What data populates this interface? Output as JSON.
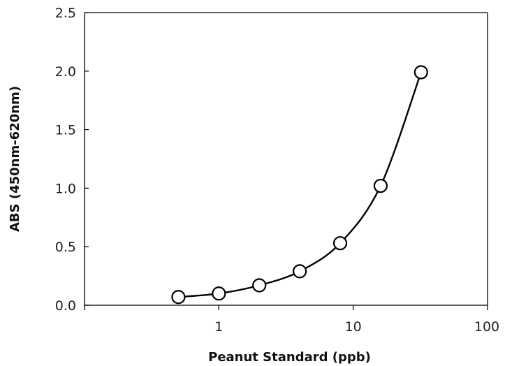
{
  "chart_data": {
    "type": "scatter",
    "title": "",
    "xlabel": "Peanut Standard (ppb)",
    "ylabel": "ABS (450nm-620nm)",
    "x_scale": "log",
    "xlim": [
      0.1,
      100
    ],
    "ylim": [
      0,
      2.5
    ],
    "grid": false,
    "x_ticks": [
      {
        "value": 1,
        "label": "1"
      },
      {
        "value": 10,
        "label": "10"
      },
      {
        "value": 100,
        "label": "100"
      }
    ],
    "y_ticks": [
      {
        "value": 0.0,
        "label": "0.0"
      },
      {
        "value": 0.5,
        "label": "0.5"
      },
      {
        "value": 1.0,
        "label": "1.0"
      },
      {
        "value": 1.5,
        "label": "1.5"
      },
      {
        "value": 2.0,
        "label": "2.0"
      },
      {
        "value": 2.5,
        "label": "2.5"
      }
    ],
    "series": [
      {
        "x": [
          0.5,
          1,
          2,
          4,
          8,
          16,
          32
        ],
        "y": [
          0.07,
          0.1,
          0.17,
          0.29,
          0.53,
          1.02,
          1.99
        ],
        "marker": "open-circle",
        "line": "smooth",
        "line_color": "#000000",
        "marker_fill": "#ffffff"
      }
    ]
  }
}
